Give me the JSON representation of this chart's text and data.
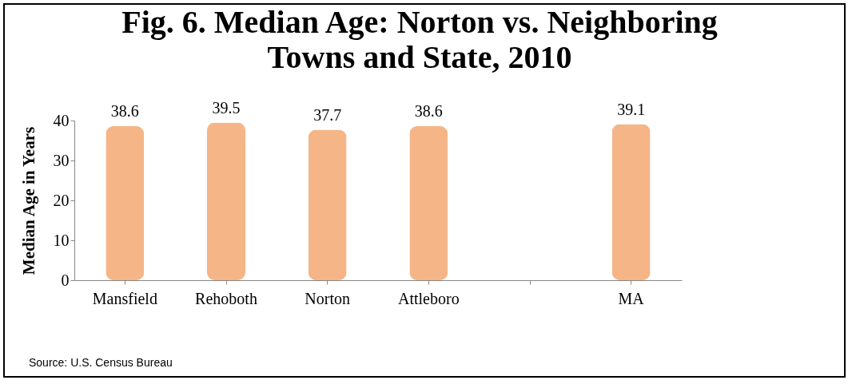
{
  "chart_data": {
    "type": "bar",
    "title": "Fig. 6. Median Age: Norton vs. Neighboring Towns and State, 2010",
    "ylabel": "Median Age in Years",
    "categories": [
      "Mansfield",
      "Rehoboth",
      "Norton",
      "Attleboro",
      null,
      "MA"
    ],
    "values": [
      38.6,
      39.5,
      37.7,
      38.6,
      null,
      39.1
    ],
    "color": "#f5b587",
    "ylim": [
      0,
      40
    ],
    "yticks": [
      0,
      10,
      20,
      30,
      40
    ],
    "data_labels": true,
    "annotations": [
      "Source: U.S. Census Bureau"
    ]
  }
}
